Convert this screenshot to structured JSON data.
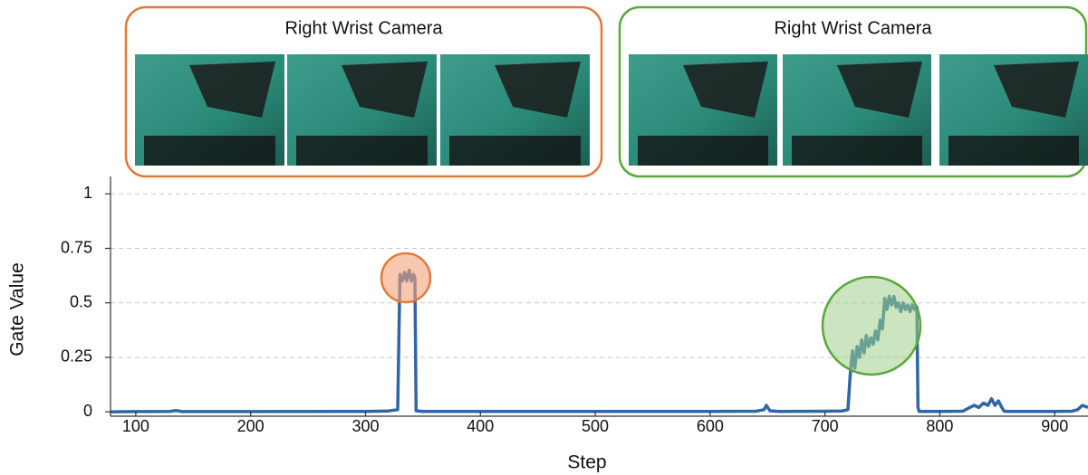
{
  "chart_data": {
    "type": "line",
    "panels": [
      {
        "title": "Right Wrist Camera",
        "color": "#e07b39"
      },
      {
        "title": "Right Wrist Camera",
        "color": "#5aa83a"
      }
    ],
    "x_label": "Step",
    "y_label": "Gate Value",
    "xlim": [
      78,
      929
    ],
    "ylim": [
      -0.02,
      1.08
    ],
    "xticks": [
      100,
      200,
      300,
      400,
      500,
      600,
      700,
      800,
      900
    ],
    "yticks": [
      0,
      0.25,
      0.5,
      0.75,
      1
    ],
    "grid": true,
    "series": [
      {
        "color": "#2e67a3",
        "x": [
          78,
          100,
          130,
          135,
          140,
          200,
          300,
          320,
          328,
          330,
          332,
          334,
          336,
          338,
          340,
          342,
          343,
          344,
          350,
          400,
          500,
          600,
          640,
          647,
          649,
          652,
          660,
          700,
          715,
          720,
          722,
          724,
          726,
          728,
          730,
          732,
          734,
          736,
          738,
          740,
          742,
          744,
          746,
          748,
          750,
          752,
          754,
          756,
          758,
          760,
          762,
          764,
          766,
          768,
          770,
          772,
          774,
          776,
          778,
          780,
          781,
          782,
          790,
          800,
          820,
          826,
          830,
          834,
          838,
          842,
          845,
          848,
          851,
          854,
          856,
          860,
          880,
          900,
          915,
          920,
          924,
          929
        ],
        "values": [
          0,
          0.001,
          0.002,
          0.006,
          0.001,
          0.001,
          0.002,
          0.004,
          0.01,
          0.63,
          0.6,
          0.64,
          0.6,
          0.65,
          0.6,
          0.63,
          0.61,
          0.005,
          0.002,
          0.002,
          0.002,
          0.002,
          0.003,
          0.01,
          0.03,
          0.005,
          0.002,
          0.003,
          0.004,
          0.01,
          0.17,
          0.28,
          0.2,
          0.3,
          0.25,
          0.33,
          0.27,
          0.35,
          0.3,
          0.34,
          0.31,
          0.37,
          0.33,
          0.42,
          0.38,
          0.52,
          0.47,
          0.53,
          0.49,
          0.53,
          0.48,
          0.5,
          0.46,
          0.5,
          0.47,
          0.49,
          0.46,
          0.49,
          0.47,
          0.48,
          0.02,
          0.002,
          0.002,
          0.002,
          0.003,
          0.02,
          0.03,
          0.02,
          0.04,
          0.03,
          0.06,
          0.03,
          0.05,
          0.02,
          0.003,
          0.002,
          0.002,
          0.002,
          0.003,
          0.01,
          0.03,
          0.02
        ]
      }
    ]
  }
}
